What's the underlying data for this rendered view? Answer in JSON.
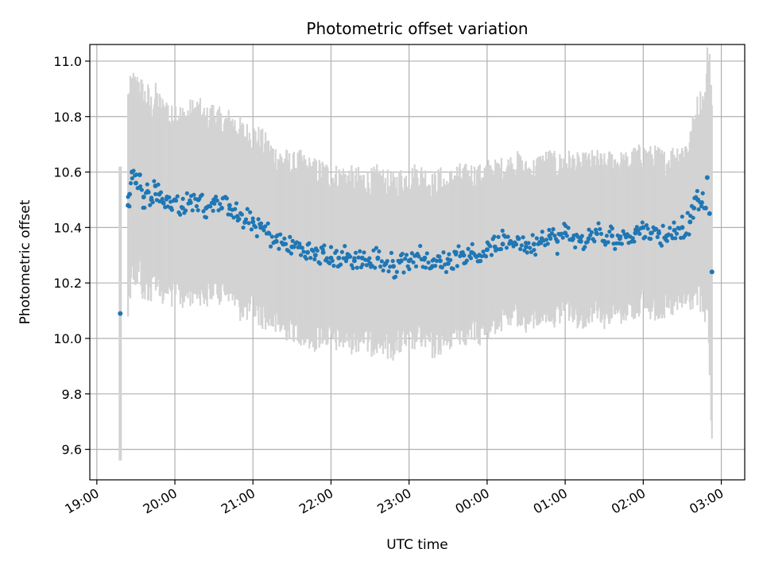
{
  "chart_data": {
    "type": "scatter",
    "title": "Photometric offset variation",
    "xlabel": "UTC time",
    "ylabel": "Photometric offset",
    "x_ticks": [
      "19:00",
      "20:00",
      "21:00",
      "22:00",
      "23:00",
      "00:00",
      "01:00",
      "02:00",
      "03:00"
    ],
    "y_ticks": [
      "9.6",
      "9.8",
      "10.0",
      "10.2",
      "10.4",
      "10.6",
      "10.8",
      "11.0"
    ],
    "x_unit": "hours since 19:00 UTC",
    "xlim": [
      -0.09,
      8.3
    ],
    "ylim": [
      9.49,
      11.06
    ],
    "grid": true,
    "colors": {
      "points": "#1f77b4",
      "error_bars": "#d3d3d3",
      "grid": "#b0b0b0"
    },
    "series": [
      {
        "x": [
          0.3,
          0.4,
          0.42,
          0.45,
          0.5,
          0.55,
          0.6,
          0.65,
          0.7,
          0.75,
          0.8,
          0.85,
          0.9,
          0.95,
          1.0,
          1.1,
          1.2,
          1.3,
          1.4,
          1.5,
          1.6,
          1.7,
          1.8,
          1.9,
          2.0,
          2.1,
          2.2,
          2.3,
          2.4,
          2.5,
          2.6,
          2.7,
          2.8,
          2.9,
          3.0,
          3.1,
          3.2,
          3.3,
          3.4,
          3.5,
          3.6,
          3.7,
          3.8,
          3.9,
          4.0,
          4.1,
          4.2,
          4.3,
          4.4,
          4.5,
          4.6,
          4.7,
          4.8,
          4.9,
          5.0,
          5.1,
          5.2,
          5.3,
          5.4,
          5.5,
          5.6,
          5.7,
          5.8,
          5.9,
          6.0,
          6.1,
          6.2,
          6.3,
          6.4,
          6.5,
          6.6,
          6.7,
          6.8,
          6.9,
          7.0,
          7.1,
          7.2,
          7.3,
          7.4,
          7.5,
          7.6,
          7.65,
          7.7,
          7.75,
          7.8,
          7.82,
          7.85,
          7.88
        ],
        "y": [
          10.09,
          10.48,
          10.52,
          10.6,
          10.56,
          10.59,
          10.51,
          10.53,
          10.5,
          10.55,
          10.52,
          10.49,
          10.51,
          10.47,
          10.5,
          10.47,
          10.49,
          10.5,
          10.47,
          10.5,
          10.47,
          10.48,
          10.44,
          10.42,
          10.42,
          10.4,
          10.38,
          10.35,
          10.34,
          10.33,
          10.33,
          10.31,
          10.3,
          10.31,
          10.29,
          10.29,
          10.29,
          10.28,
          10.29,
          10.27,
          10.29,
          10.27,
          10.26,
          10.28,
          10.28,
          10.3,
          10.29,
          10.26,
          10.28,
          10.27,
          10.31,
          10.3,
          10.31,
          10.3,
          10.32,
          10.33,
          10.34,
          10.35,
          10.36,
          10.33,
          10.34,
          10.36,
          10.37,
          10.35,
          10.38,
          10.36,
          10.35,
          10.36,
          10.38,
          10.35,
          10.37,
          10.36,
          10.37,
          10.38,
          10.4,
          10.38,
          10.38,
          10.37,
          10.39,
          10.4,
          10.42,
          10.47,
          10.5,
          10.49,
          10.47,
          10.58,
          10.45,
          10.24
        ],
        "yerr": [
          0.53,
          0.38,
          0.35,
          0.32,
          0.34,
          0.33,
          0.35,
          0.34,
          0.33,
          0.32,
          0.32,
          0.33,
          0.32,
          0.31,
          0.32,
          0.32,
          0.32,
          0.32,
          0.31,
          0.31,
          0.3,
          0.3,
          0.32,
          0.31,
          0.31,
          0.31,
          0.3,
          0.3,
          0.3,
          0.29,
          0.3,
          0.3,
          0.3,
          0.29,
          0.29,
          0.29,
          0.29,
          0.29,
          0.28,
          0.29,
          0.29,
          0.29,
          0.29,
          0.29,
          0.29,
          0.29,
          0.29,
          0.29,
          0.29,
          0.28,
          0.28,
          0.28,
          0.28,
          0.28,
          0.28,
          0.27,
          0.27,
          0.27,
          0.27,
          0.27,
          0.27,
          0.27,
          0.27,
          0.27,
          0.26,
          0.27,
          0.27,
          0.27,
          0.26,
          0.27,
          0.27,
          0.27,
          0.26,
          0.27,
          0.26,
          0.27,
          0.27,
          0.26,
          0.27,
          0.27,
          0.28,
          0.31,
          0.33,
          0.36,
          0.38,
          0.41,
          0.56,
          0.6
        ]
      }
    ]
  }
}
